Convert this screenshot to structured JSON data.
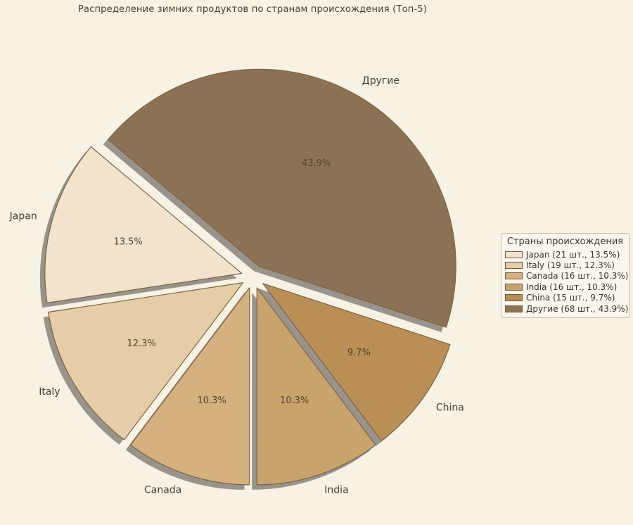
{
  "page": {
    "background": "#f8f2e5"
  },
  "chart_data": {
    "type": "pie",
    "title": "Распределение зимних продуктов по странам происхождения (Топ-5)",
    "legend_title": "Страны происхождения",
    "legend_position": "right",
    "geometry": {
      "start_angle": 140,
      "direction": "counterclockwise",
      "explode": 0.06,
      "shadow": true,
      "pct_distance": 0.6,
      "label_distance": 1.08
    },
    "slices": [
      {
        "id": "japan",
        "label": "Japan",
        "count": 21,
        "pct": 13.5,
        "pct_label": "13.5%",
        "legend_label": "Japan (21 шт., 13.5%)",
        "color": "#f2e3cd"
      },
      {
        "id": "italy",
        "label": "Italy",
        "count": 19,
        "pct": 12.3,
        "pct_label": "12.3%",
        "legend_label": "Italy (19 шт., 12.3%)",
        "color": "#e5cda7"
      },
      {
        "id": "canada",
        "label": "Canada",
        "count": 16,
        "pct": 10.3,
        "pct_label": "10.3%",
        "legend_label": "Canada (16 шт., 10.3%)",
        "color": "#d4b17e"
      },
      {
        "id": "india",
        "label": "India",
        "count": 16,
        "pct": 10.3,
        "pct_label": "10.3%",
        "legend_label": "India (16 шт., 10.3%)",
        "color": "#c8a36c"
      },
      {
        "id": "china",
        "label": "China",
        "count": 15,
        "pct": 9.7,
        "pct_label": "9.7%",
        "legend_label": "China (15 шт., 9.7%)",
        "color": "#b98f55"
      },
      {
        "id": "other",
        "label": "Другие",
        "count": 68,
        "pct": 43.9,
        "pct_label": "43.9%",
        "legend_label": "Другие (68 шт., 43.9%)",
        "color": "#8b7254"
      }
    ]
  },
  "colors": {
    "background": "#f8f2e5",
    "wedge_edge": "#7d6345",
    "shadow": "#98938b",
    "title_text": "#4b3b28",
    "label_text": "#4b3b29",
    "pct_text": "#56442f",
    "legend_bg": "#fbf7ee",
    "legend_border": "#cdbc9b",
    "legend_text": "#3a342c",
    "legend_swatch_border": "#6f5939"
  }
}
